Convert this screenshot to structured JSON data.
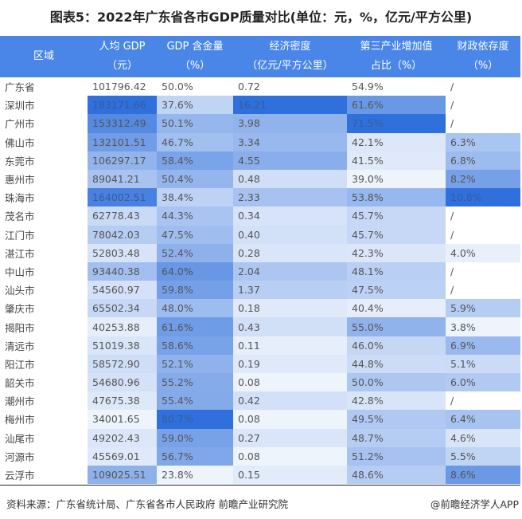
{
  "title": "图表5：2022年广东省各市GDP质量对比(单位：元，%，亿元/平方公里)",
  "chart_data": {
    "type": "heatmap-table",
    "columns": [
      {
        "line1": "区域",
        "line2": ""
      },
      {
        "line1": "人均 GDP",
        "line2": "（元）"
      },
      {
        "line1": "GDP 含金量",
        "line2": "（%）"
      },
      {
        "line1": "经济密度",
        "line2": "（亿元/平方公里）"
      },
      {
        "line1": "第三产业增加值",
        "line2": "占比（%）"
      },
      {
        "line1": "财政依存度",
        "line2": "（%）"
      }
    ],
    "rows": [
      [
        "广东省",
        "101796.42",
        "50.0%",
        "0.72",
        "54.9%",
        "/"
      ],
      [
        "深圳市",
        "183171.66",
        "37.6%",
        "16.21",
        "61.6%",
        "/"
      ],
      [
        "广州市",
        "153312.49",
        "50.1%",
        "3.98",
        "71.5%",
        "/"
      ],
      [
        "佛山市",
        "132101.51",
        "46.7%",
        "3.34",
        "42.1%",
        "6.3%"
      ],
      [
        "东莞市",
        "106297.17",
        "58.4%",
        "4.55",
        "41.5%",
        "6.8%"
      ],
      [
        "惠州市",
        "89041.21",
        "50.4%",
        "0.48",
        "39.0%",
        "8.2%"
      ],
      [
        "珠海市",
        "164002.51",
        "38.4%",
        "2.33",
        "53.8%",
        "10.8%"
      ],
      [
        "茂名市",
        "62778.43",
        "44.3%",
        "0.34",
        "45.7%",
        "/"
      ],
      [
        "江门市",
        "78042.03",
        "47.5%",
        "0.40",
        "45.7%",
        "/"
      ],
      [
        "湛江市",
        "52803.48",
        "52.4%",
        "0.28",
        "42.3%",
        "4.0%"
      ],
      [
        "中山市",
        "93440.38",
        "64.0%",
        "2.04",
        "48.1%",
        "/"
      ],
      [
        "汕头市",
        "54560.97",
        "59.8%",
        "1.37",
        "47.5%",
        "/"
      ],
      [
        "肇庆市",
        "65502.34",
        "48.0%",
        "0.18",
        "40.4%",
        "5.9%"
      ],
      [
        "揭阳市",
        "40253.88",
        "61.6%",
        "0.43",
        "55.0%",
        "3.8%"
      ],
      [
        "清远市",
        "51019.38",
        "58.6%",
        "0.11",
        "46.0%",
        "6.9%"
      ],
      [
        "阳江市",
        "58572.90",
        "52.1%",
        "0.19",
        "44.8%",
        "5.1%"
      ],
      [
        "韶关市",
        "54680.96",
        "55.2%",
        "0.08",
        "50.0%",
        "6.0%"
      ],
      [
        "潮州市",
        "47675.38",
        "55.4%",
        "0.42",
        "42.8%",
        "/"
      ],
      [
        "梅州市",
        "34001.65",
        "80.7%",
        "0.08",
        "49.5%",
        "6.4%"
      ],
      [
        "汕尾市",
        "49202.43",
        "59.0%",
        "0.27",
        "48.7%",
        "4.6%"
      ],
      [
        "河源市",
        "45569.01",
        "56.7%",
        "0.08",
        "51.2%",
        "5.5%"
      ],
      [
        "云浮市",
        "109025.51",
        "23.8%",
        "0.15",
        "48.6%",
        "8.6%"
      ]
    ],
    "color_scale": {
      "low": "#ffffff",
      "high": "#2f70dc"
    },
    "header_color": "#4a86e8"
  },
  "footer": {
    "source": "资料来源：广东省统计局、广东省各市人民政府 前瞻产业研究院",
    "credit": "@前瞻经济学人APP"
  }
}
